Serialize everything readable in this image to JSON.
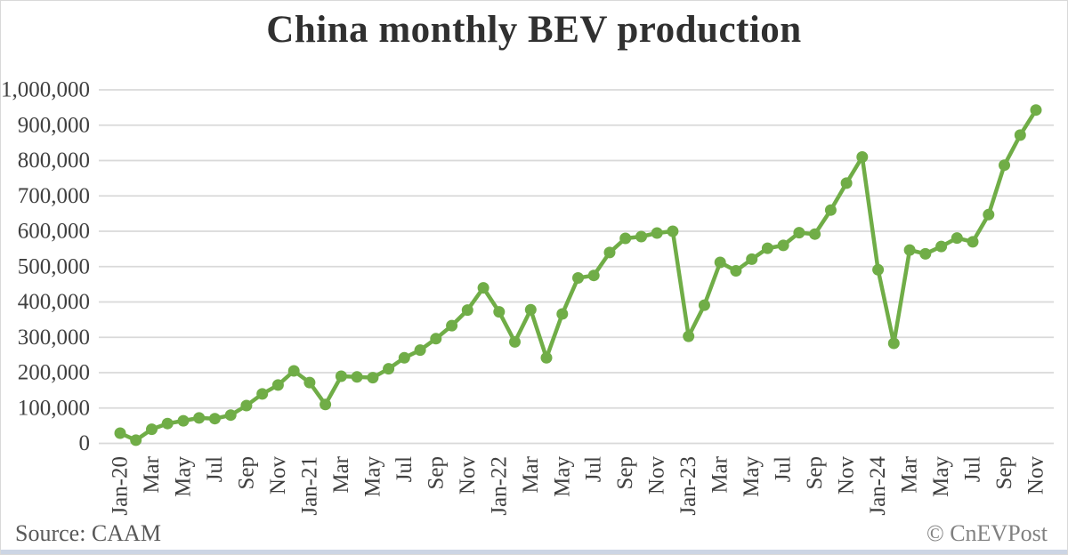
{
  "page": {
    "source_note": "Source: CAAM",
    "copyright": "© CnEVPost"
  },
  "colors": {
    "line": "#70ad47",
    "grid": "#d9d9d9",
    "tick_text": "#404040",
    "title_text": "#303030",
    "source_text": "#595959",
    "copyright_text": "#808080",
    "accent_bar": "#ccd5e4",
    "border": "#d9d9d9"
  },
  "chart_data": {
    "type": "line",
    "title": "China monthly BEV production",
    "series_name": "BEV production (units)",
    "xlabel": "",
    "ylabel": "",
    "ylim": [
      0,
      1000000
    ],
    "y_tick_step": 100000,
    "grid": "horizontal",
    "legend_position": "none",
    "marker": "circle",
    "x": [
      "Jan-20",
      "Feb-20",
      "Mar-20",
      "Apr-20",
      "May-20",
      "Jun-20",
      "Jul-20",
      "Aug-20",
      "Sep-20",
      "Oct-20",
      "Nov-20",
      "Dec-20",
      "Jan-21",
      "Feb-21",
      "Mar-21",
      "Apr-21",
      "May-21",
      "Jun-21",
      "Jul-21",
      "Aug-21",
      "Sep-21",
      "Oct-21",
      "Nov-21",
      "Dec-21",
      "Jan-22",
      "Feb-22",
      "Mar-22",
      "Apr-22",
      "May-22",
      "Jun-22",
      "Jul-22",
      "Aug-22",
      "Sep-22",
      "Oct-22",
      "Nov-22",
      "Dec-22",
      "Jan-23",
      "Feb-23",
      "Mar-23",
      "Apr-23",
      "May-23",
      "Jun-23",
      "Jul-23",
      "Aug-23",
      "Sep-23",
      "Oct-23",
      "Nov-23",
      "Dec-23",
      "Jan-24",
      "Feb-24",
      "Mar-24",
      "Apr-24",
      "May-24",
      "Jun-24",
      "Jul-24",
      "Aug-24",
      "Sep-24",
      "Oct-24",
      "Nov-24"
    ],
    "values": [
      29000,
      9000,
      40000,
      56000,
      64000,
      72000,
      70000,
      80000,
      107000,
      140000,
      165000,
      205000,
      172000,
      110000,
      190000,
      188000,
      186000,
      211000,
      242000,
      264000,
      296000,
      333000,
      377000,
      440000,
      372000,
      287000,
      378000,
      242000,
      366000,
      468000,
      475000,
      540000,
      580000,
      585000,
      595000,
      600000,
      303000,
      391000,
      512000,
      488000,
      521000,
      552000,
      560000,
      596000,
      592000,
      660000,
      736000,
      810000,
      491000,
      283000,
      547000,
      536000,
      557000,
      581000,
      570000,
      647000,
      787000,
      872000,
      943000
    ],
    "x_tick_labels": [
      {
        "index": 0,
        "label": "Jan-20"
      },
      {
        "index": 2,
        "label": "Mar"
      },
      {
        "index": 4,
        "label": "May"
      },
      {
        "index": 6,
        "label": "Jul"
      },
      {
        "index": 8,
        "label": "Sep"
      },
      {
        "index": 10,
        "label": "Nov"
      },
      {
        "index": 12,
        "label": "Jan-21"
      },
      {
        "index": 14,
        "label": "Mar"
      },
      {
        "index": 16,
        "label": "May"
      },
      {
        "index": 18,
        "label": "Jul"
      },
      {
        "index": 20,
        "label": "Sep"
      },
      {
        "index": 22,
        "label": "Nov"
      },
      {
        "index": 24,
        "label": "Jan-22"
      },
      {
        "index": 26,
        "label": "Mar"
      },
      {
        "index": 28,
        "label": "May"
      },
      {
        "index": 30,
        "label": "Jul"
      },
      {
        "index": 32,
        "label": "Sep"
      },
      {
        "index": 34,
        "label": "Nov"
      },
      {
        "index": 36,
        "label": "Jan-23"
      },
      {
        "index": 38,
        "label": "Mar"
      },
      {
        "index": 40,
        "label": "May"
      },
      {
        "index": 42,
        "label": "Jul"
      },
      {
        "index": 44,
        "label": "Sep"
      },
      {
        "index": 46,
        "label": "Nov"
      },
      {
        "index": 48,
        "label": "Jan-24"
      },
      {
        "index": 50,
        "label": "Mar"
      },
      {
        "index": 52,
        "label": "May"
      },
      {
        "index": 54,
        "label": "Jul"
      },
      {
        "index": 56,
        "label": "Sep"
      },
      {
        "index": 58,
        "label": "Nov"
      }
    ],
    "y_tick_labels": [
      "0",
      "100,000",
      "200,000",
      "300,000",
      "400,000",
      "500,000",
      "600,000",
      "700,000",
      "800,000",
      "900,000",
      "1,000,000"
    ]
  }
}
